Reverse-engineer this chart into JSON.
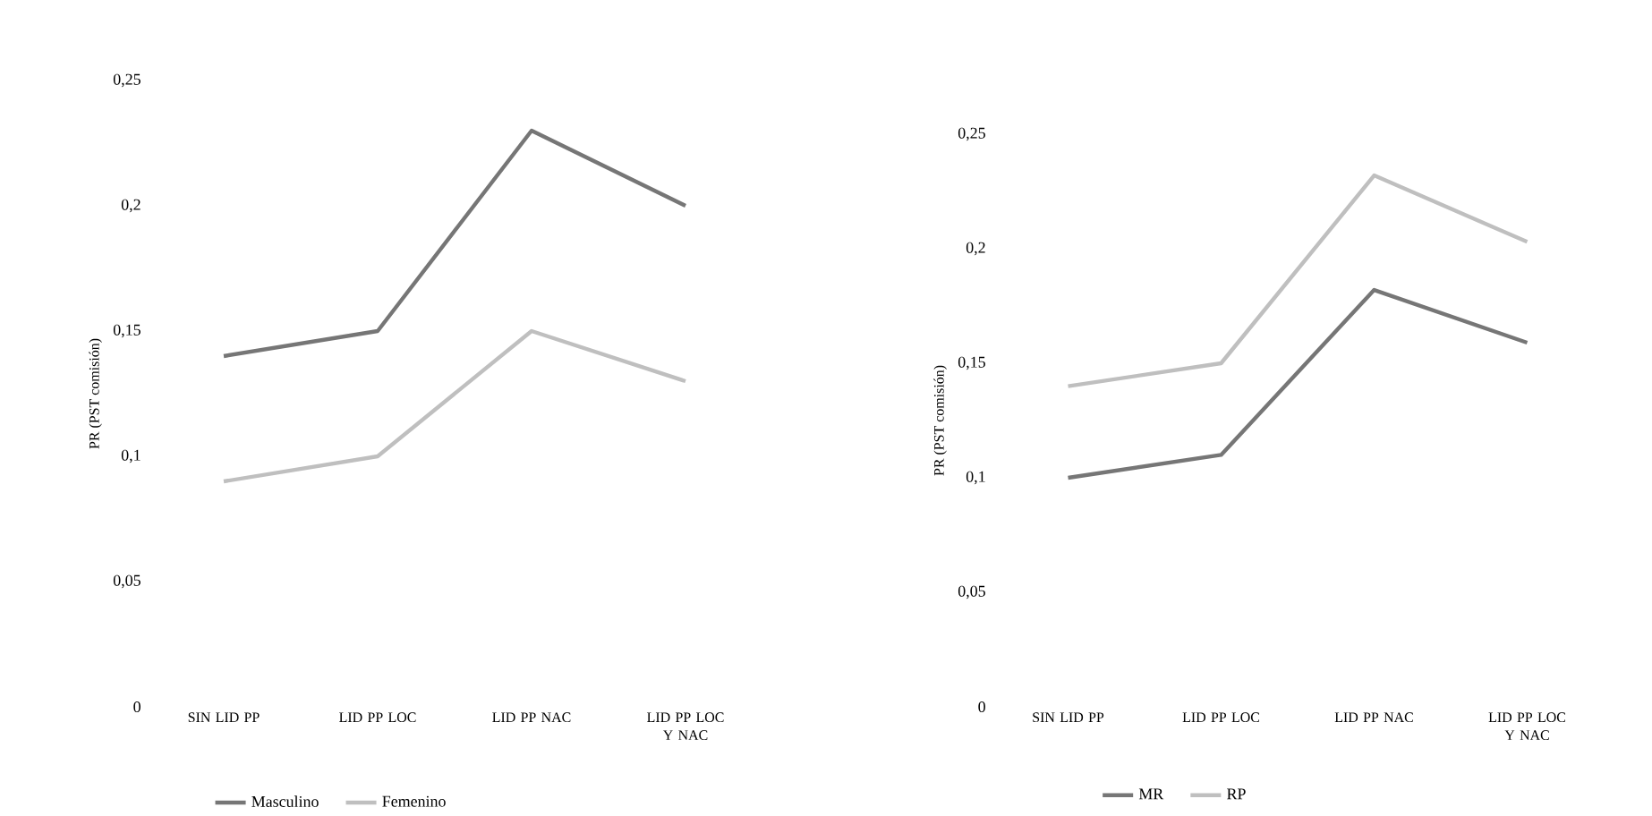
{
  "chart_data": [
    {
      "type": "line",
      "ylabel": "PR (PST comisión)",
      "categories": [
        "SIN LID PP",
        "LID PP LOC",
        "LID PP NAC",
        "LID PP LOC Y NAC"
      ],
      "series": [
        {
          "name": "Masculino",
          "color": "#767676",
          "values": [
            0.14,
            0.15,
            0.23,
            0.2
          ]
        },
        {
          "name": "Femenino",
          "color": "#bfbfbf",
          "values": [
            0.09,
            0.1,
            0.15,
            0.13
          ]
        }
      ],
      "ylim": [
        0,
        0.25
      ],
      "yticks": [
        {
          "value": 0,
          "label": "0"
        },
        {
          "value": 0.05,
          "label": "0,05"
        },
        {
          "value": 0.1,
          "label": "0,1"
        },
        {
          "value": 0.15,
          "label": "0,15"
        },
        {
          "value": 0.2,
          "label": "0,2"
        },
        {
          "value": 0.25,
          "label": "0,25"
        }
      ],
      "legend": "bottom",
      "marker": "none",
      "line_style": "solid"
    },
    {
      "type": "line",
      "ylabel": "PR (PST comisión)",
      "categories": [
        "SIN LID PP",
        "LID PP LOC",
        "LID PP NAC",
        "LID PP LOC Y NAC"
      ],
      "series": [
        {
          "name": "MR",
          "color": "#767676",
          "values": [
            0.1,
            0.11,
            0.182,
            0.159
          ]
        },
        {
          "name": "RP",
          "color": "#bfbfbf",
          "values": [
            0.14,
            0.15,
            0.232,
            0.203
          ]
        }
      ],
      "ylim": [
        0,
        0.25
      ],
      "yticks": [
        {
          "value": 0,
          "label": "0"
        },
        {
          "value": 0.05,
          "label": "0,05"
        },
        {
          "value": 0.1,
          "label": "0,1"
        },
        {
          "value": 0.15,
          "label": "0,15"
        },
        {
          "value": 0.2,
          "label": "0,2"
        },
        {
          "value": 0.25,
          "label": "0,25"
        }
      ],
      "legend": "bottom",
      "marker": "none",
      "line_style": "solid"
    }
  ]
}
